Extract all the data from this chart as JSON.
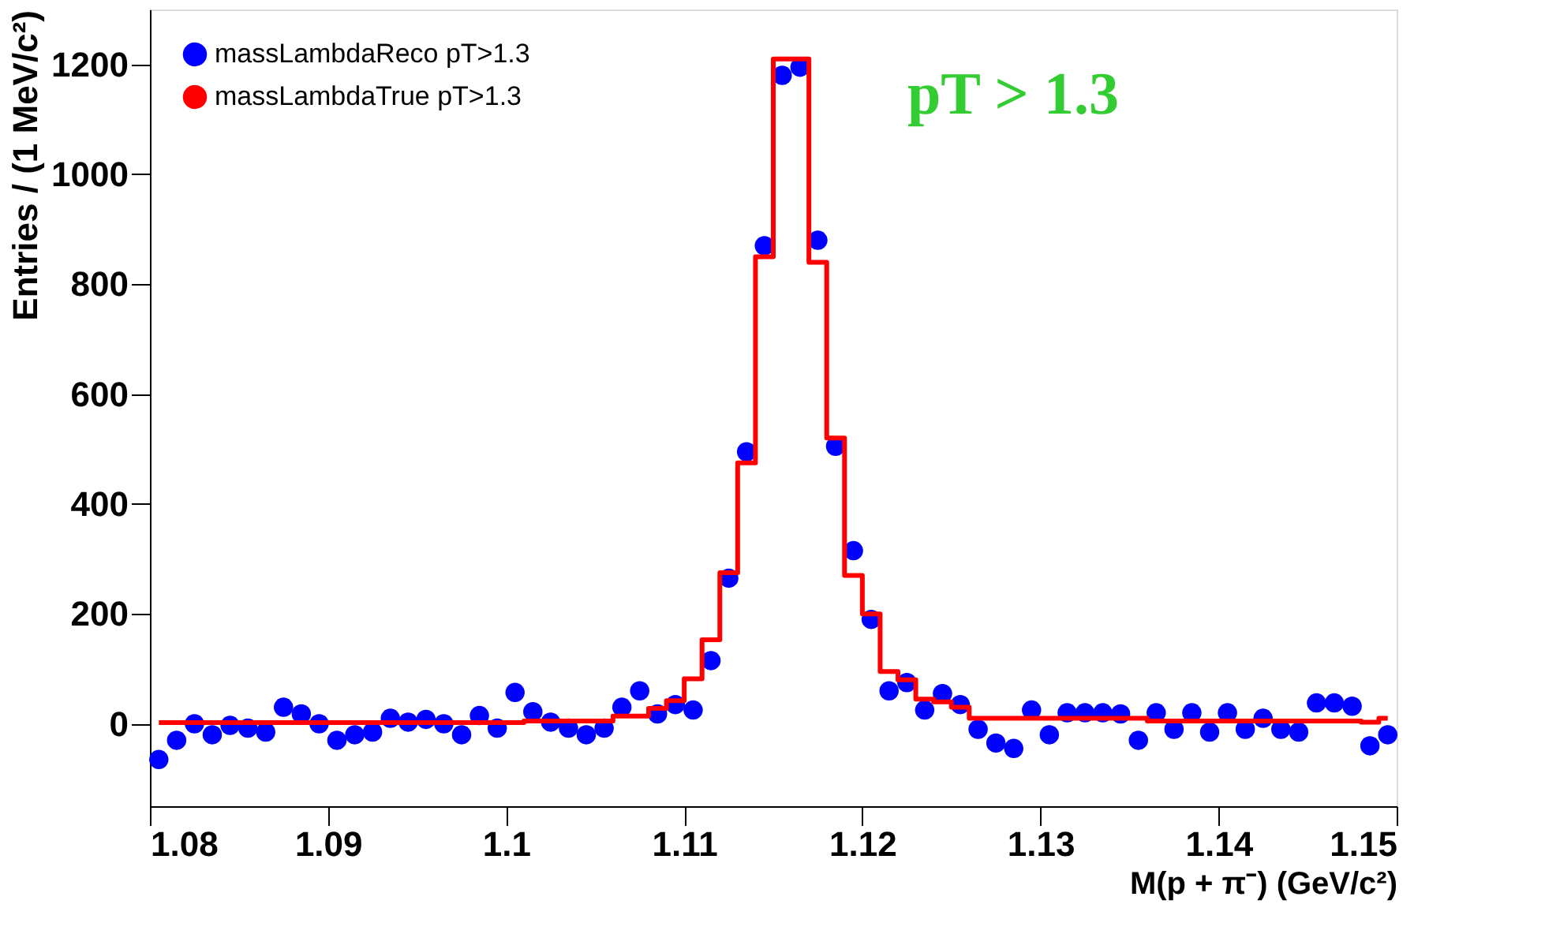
{
  "chart_data": {
    "type": "scatter",
    "xlabel": "M(p + π⁻) (GeV/c²)",
    "ylabel": "Entries / (1 MeV/c²)",
    "annotations": [
      "pT > 1.3"
    ],
    "x": [
      1.0805,
      1.0815,
      1.0825,
      1.0835,
      1.0845,
      1.0855,
      1.0865,
      1.0875,
      1.0885,
      1.0895,
      1.0905,
      1.0915,
      1.0925,
      1.0935,
      1.0945,
      1.0955,
      1.0965,
      1.0975,
      1.0985,
      1.0995,
      1.1005,
      1.1015,
      1.1025,
      1.1035,
      1.1045,
      1.1055,
      1.1065,
      1.1075,
      1.1085,
      1.1095,
      1.1105,
      1.1115,
      1.1125,
      1.1135,
      1.1145,
      1.1155,
      1.1165,
      1.1175,
      1.1185,
      1.1195,
      1.1205,
      1.1215,
      1.1225,
      1.1235,
      1.1245,
      1.1255,
      1.1265,
      1.1275,
      1.1285,
      1.1295,
      1.1305,
      1.1315,
      1.1325,
      1.1335,
      1.1345,
      1.1355,
      1.1365,
      1.1375,
      1.1385,
      1.1395,
      1.1405,
      1.1415,
      1.1425,
      1.1435,
      1.1445,
      1.1455,
      1.1465,
      1.1475,
      1.1485,
      1.1495
    ],
    "series": [
      {
        "name": "massLambdaReco pT>1.3",
        "color": "#0000ff",
        "marker": "circle",
        "values": [
          -65,
          -30,
          0,
          -20,
          -3,
          -8,
          -15,
          30,
          18,
          0,
          -30,
          -20,
          -15,
          10,
          3,
          8,
          0,
          -20,
          15,
          -8,
          57,
          22,
          3,
          -8,
          -20,
          -8,
          30,
          60,
          18,
          35,
          25,
          115,
          265,
          495,
          870,
          1180,
          1195,
          880,
          505,
          315,
          190,
          60,
          75,
          25,
          55,
          35,
          -10,
          -35,
          -45,
          25,
          -20,
          20,
          20,
          20,
          18,
          -30,
          20,
          -10,
          20,
          -15,
          20,
          -10,
          10,
          -10,
          -15,
          38,
          38,
          32,
          -40,
          -20
        ]
      },
      {
        "name": "massLambdaTrue pT>1.3",
        "type": "step",
        "color": "#ff0000",
        "line_style": "solid",
        "values": [
          2,
          2,
          2,
          2,
          2,
          2,
          2,
          2,
          2,
          2,
          2,
          2,
          2,
          2,
          2,
          2,
          2,
          2,
          2,
          2,
          2,
          5,
          5,
          5,
          5,
          5,
          14,
          14,
          28,
          42,
          82,
          153,
          275,
          475,
          850,
          1210,
          1210,
          840,
          520,
          270,
          200,
          95,
          80,
          45,
          40,
          30,
          10,
          10,
          10,
          10,
          10,
          10,
          10,
          10,
          10,
          10,
          5,
          5,
          5,
          5,
          5,
          5,
          5,
          5,
          5,
          5,
          5,
          5,
          3,
          10
        ]
      }
    ],
    "xlim": [
      1.08,
      1.15
    ],
    "xticks": [
      1.08,
      1.09,
      1.1,
      1.11,
      1.12,
      1.13,
      1.14,
      1.15
    ],
    "ylim": [
      -150,
      1300
    ],
    "yticks": [
      0,
      200,
      400,
      600,
      800,
      1000,
      1200
    ],
    "grid": false,
    "legend": "top left"
  }
}
